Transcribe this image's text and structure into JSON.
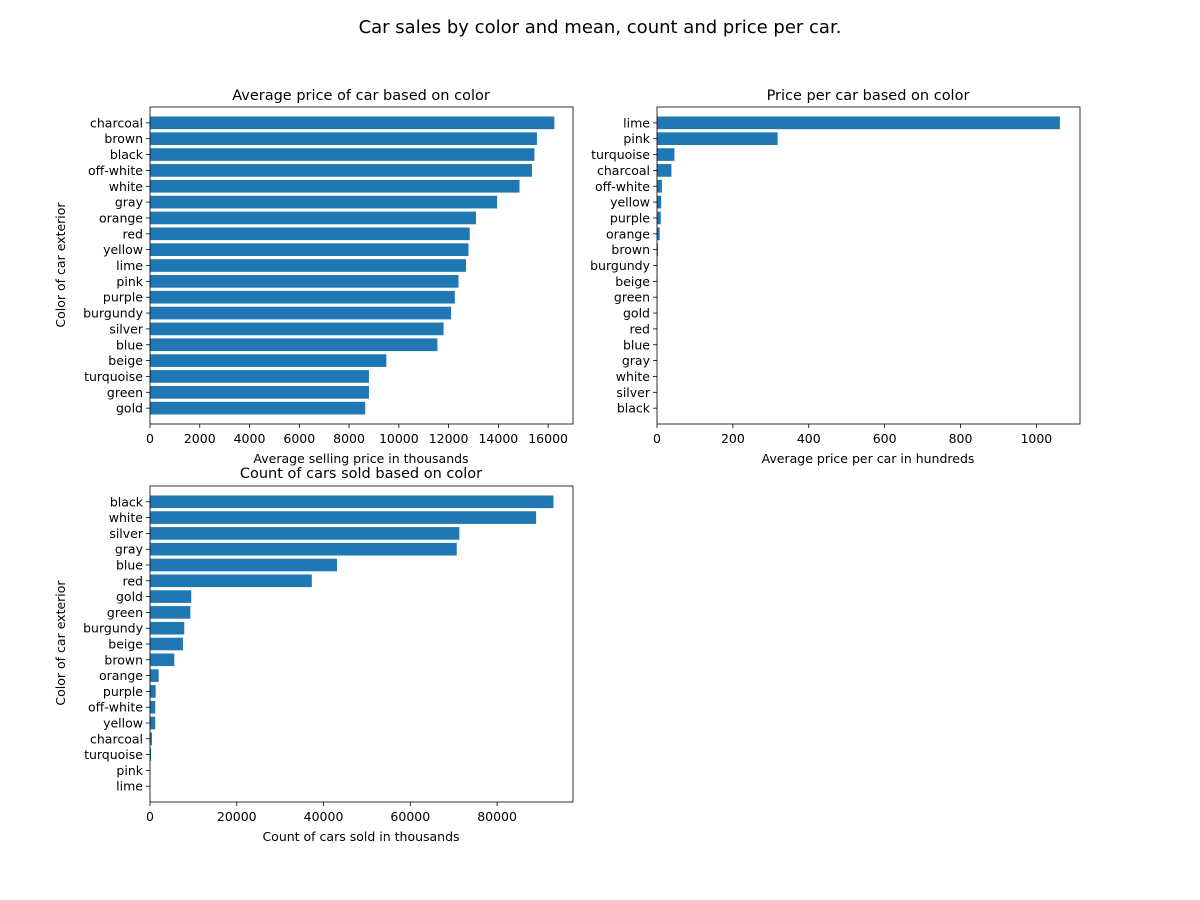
{
  "suptitle": "Car sales by color and mean, count and price per car.",
  "bar_color": "#1f77b4",
  "chart_data": [
    {
      "type": "bar",
      "orientation": "horizontal",
      "title": "Average price of car based on color",
      "xlabel": "Average selling price in thousands",
      "ylabel": "Color of car exterior",
      "xlim": [
        0,
        17000
      ],
      "xticks": [
        0,
        2000,
        4000,
        6000,
        8000,
        10000,
        12000,
        14000,
        16000
      ],
      "categories": [
        "charcoal",
        "brown",
        "black",
        "off-white",
        "white",
        "gray",
        "orange",
        "red",
        "yellow",
        "lime",
        "pink",
        "purple",
        "burgundy",
        "silver",
        "blue",
        "beige",
        "turquoise",
        "green",
        "gold"
      ],
      "values": [
        16250,
        15550,
        15450,
        15350,
        14850,
        13950,
        13100,
        12850,
        12800,
        12700,
        12400,
        12250,
        12100,
        11800,
        11550,
        9500,
        8800,
        8800,
        8650
      ]
    },
    {
      "type": "bar",
      "orientation": "horizontal",
      "title": "Price per car based on color",
      "xlabel": "Average price per car in hundreds",
      "ylabel": "",
      "xlim": [
        0,
        1115
      ],
      "xticks": [
        0,
        200,
        400,
        600,
        800,
        1000
      ],
      "categories": [
        "lime",
        "pink",
        "turquoise",
        "charcoal",
        "off-white",
        "yellow",
        "purple",
        "orange",
        "brown",
        "burgundy",
        "beige",
        "green",
        "gold",
        "red",
        "blue",
        "gray",
        "white",
        "silver",
        "black"
      ],
      "values": [
        1062,
        318,
        46,
        38,
        13,
        11,
        10,
        7,
        2.5,
        1.3,
        1.2,
        1.0,
        0.9,
        0.3,
        0.25,
        0.2,
        0.15,
        0.15,
        0.15
      ]
    },
    {
      "type": "bar",
      "orientation": "horizontal",
      "title": "Count of cars sold based on color",
      "xlabel": "Count of cars sold in thousands",
      "ylabel": "Color of car exterior",
      "xlim": [
        0,
        97500
      ],
      "xticks": [
        0,
        20000,
        40000,
        60000,
        80000
      ],
      "categories": [
        "black",
        "white",
        "silver",
        "gray",
        "blue",
        "red",
        "gold",
        "green",
        "burgundy",
        "beige",
        "brown",
        "orange",
        "purple",
        "off-white",
        "yellow",
        "charcoal",
        "turquoise",
        "pink",
        "lime"
      ],
      "values": [
        93000,
        89000,
        71300,
        70700,
        43100,
        37300,
        9500,
        9300,
        7900,
        7600,
        5600,
        2000,
        1300,
        1200,
        1200,
        450,
        250,
        40,
        10
      ]
    }
  ]
}
